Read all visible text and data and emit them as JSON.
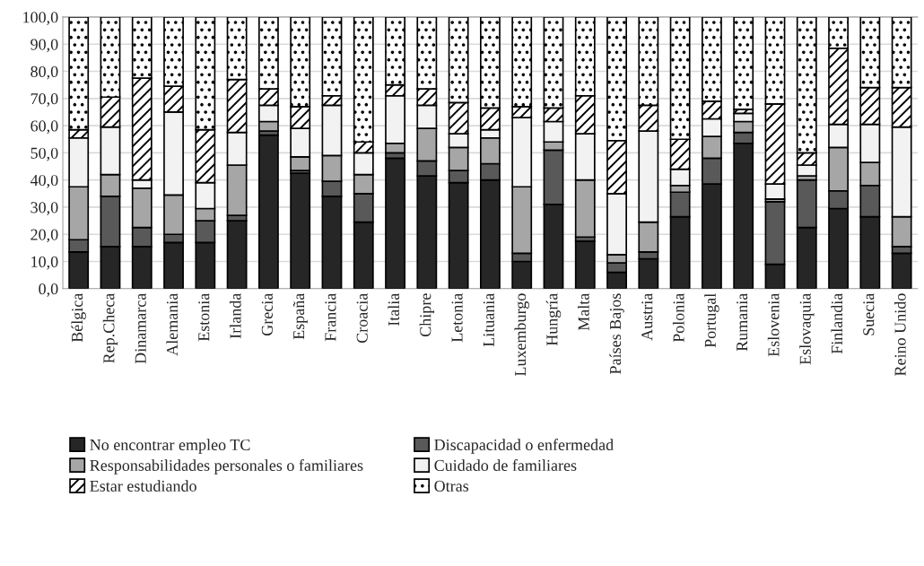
{
  "chart_data": {
    "type": "bar",
    "stacked": true,
    "categories": [
      "Bélgica",
      "Rep.Checa",
      "Dinamarca",
      "Alemania",
      "Estonia",
      "Irlanda",
      "Grecia",
      "España",
      "Francia",
      "Croacia",
      "Italia",
      "Chipre",
      "Letonia",
      "Lituania",
      "Luxemburgo",
      "Hungría",
      "Malta",
      "Países Bajos",
      "Austria",
      "Polonia",
      "Portugal",
      "Rumania",
      "Eslovenia",
      "Eslovaquia",
      "Finlandia",
      "Suecia",
      "Reino Unido"
    ],
    "series": [
      {
        "name": "No encontrar empleo TC",
        "color": "#262626",
        "values": [
          13.5,
          15.5,
          15.5,
          17,
          17,
          25,
          56.5,
          42.5,
          34,
          24.5,
          48,
          41.5,
          39,
          40,
          10,
          31,
          17.5,
          6,
          11,
          26.5,
          38.5,
          53.5,
          9,
          22.5,
          29.5,
          26.5,
          13
        ]
      },
      {
        "name": "Discapacidad o enfermedad",
        "color": "#595959",
        "values": [
          4.5,
          18.5,
          7,
          3,
          8,
          2,
          1.5,
          1,
          5.5,
          10.5,
          2,
          5.5,
          4.5,
          6,
          3,
          20,
          1.5,
          3.5,
          2.5,
          9,
          9.5,
          4,
          23,
          17.5,
          6.5,
          11.5,
          2.5
        ]
      },
      {
        "name": "Responsabilidades personales o familiares",
        "color": "#a6a6a6",
        "values": [
          19.5,
          8,
          14.5,
          14.5,
          4.5,
          18.5,
          3.5,
          5,
          9.5,
          7,
          3.5,
          12,
          8.5,
          9.5,
          24.5,
          3,
          21,
          3,
          11,
          2.5,
          8,
          4,
          1,
          1.5,
          16,
          8.5,
          11
        ]
      },
      {
        "name": "Cuidado de familiares",
        "color": "#f2f2f2",
        "values": [
          18,
          17.5,
          3,
          30.5,
          9.5,
          12,
          6,
          10.5,
          18.5,
          8,
          17.5,
          8.5,
          5,
          3,
          25.5,
          7.5,
          17,
          22.5,
          33.5,
          6,
          6.5,
          3,
          5.5,
          4,
          8.5,
          14,
          33
        ]
      },
      {
        "name": "Estar estudiando",
        "color": "#ffffff",
        "values": [
          3,
          11,
          37.5,
          9.5,
          19.5,
          19.5,
          6,
          8,
          3.5,
          4,
          4,
          6,
          11.5,
          8,
          4,
          5,
          14,
          19.5,
          9.5,
          11,
          6.5,
          1.5,
          29.5,
          4.5,
          28,
          13.5,
          14.5
        ]
      },
      {
        "name": "Otras",
        "color": "#ffffff",
        "values": [
          41.5,
          29.5,
          22.5,
          25.5,
          41.5,
          23,
          26.5,
          33,
          29,
          46,
          25,
          26.5,
          31.5,
          33.5,
          33,
          33.5,
          29,
          45.5,
          32.5,
          45,
          31,
          34,
          32,
          50,
          11.5,
          26,
          26
        ]
      }
    ],
    "ylim": [
      0,
      100
    ],
    "yticks": [
      {
        "value": 0,
        "label": "0,0"
      },
      {
        "value": 10,
        "label": "10,0"
      },
      {
        "value": 20,
        "label": "20,0"
      },
      {
        "value": 30,
        "label": "30,0"
      },
      {
        "value": 40,
        "label": "40,0"
      },
      {
        "value": 50,
        "label": "50,0"
      },
      {
        "value": 60,
        "label": "60,0"
      },
      {
        "value": 70,
        "label": "70,0"
      },
      {
        "value": 80,
        "label": "80,0"
      },
      {
        "value": 90,
        "label": "90,0"
      },
      {
        "value": 100,
        "label": "100,0"
      }
    ],
    "grid": "y",
    "legend": "bottom"
  }
}
